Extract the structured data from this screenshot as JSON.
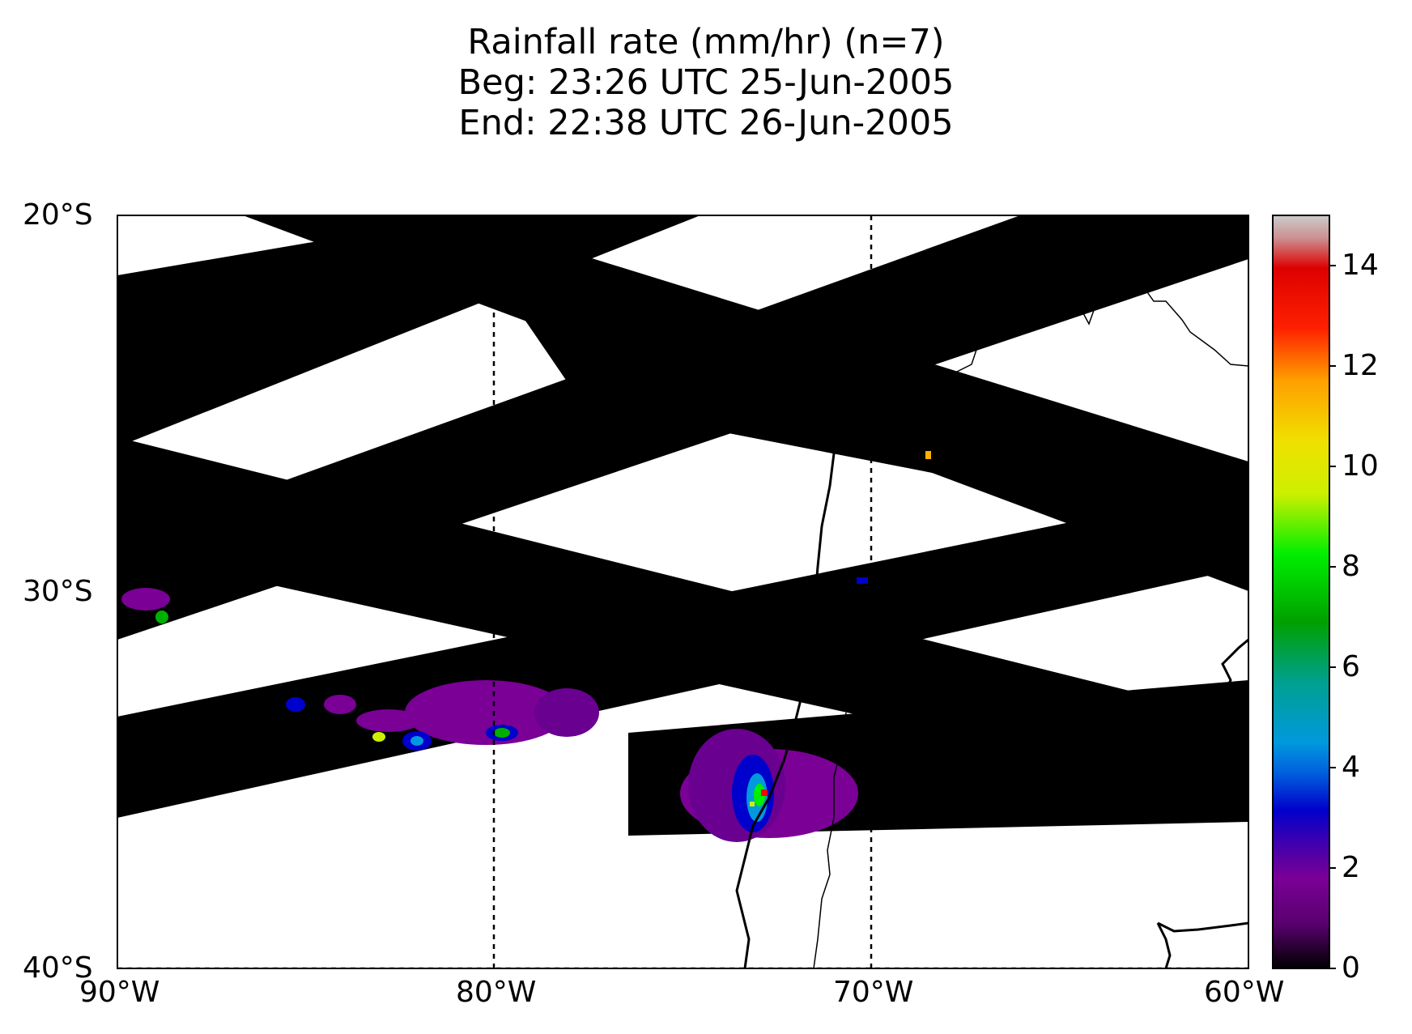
{
  "title": {
    "line1": "Rainfall rate (mm/hr)  (n=7)",
    "line2": "Beg: 23:26 UTC 25-Jun-2005",
    "line3": "End: 22:38 UTC 26-Jun-2005"
  },
  "axes": {
    "lat_ticks": [
      {
        "label": "20°S",
        "value": -20
      },
      {
        "label": "30°S",
        "value": -30
      },
      {
        "label": "40°S",
        "value": -40
      }
    ],
    "lon_ticks": [
      {
        "label": "90°W",
        "value": -90
      },
      {
        "label": "80°W",
        "value": -80
      },
      {
        "label": "70°W",
        "value": -70
      },
      {
        "label": "60°W",
        "value": -60
      }
    ],
    "lon_range": [
      -90,
      -60
    ],
    "lat_range": [
      -40,
      -20
    ]
  },
  "colorbar": {
    "range": [
      0,
      15
    ],
    "ticks": [
      "0",
      "2",
      "4",
      "6",
      "8",
      "10",
      "12",
      "14"
    ],
    "colors": [
      "#000000",
      "#7a0096",
      "#0000cc",
      "#0099dd",
      "#00a090",
      "#00b000",
      "#00ee00",
      "#ccf000",
      "#ffb000",
      "#ff0000",
      "#dd0000",
      "#cccccc"
    ]
  },
  "chart_data": {
    "type": "heatmap",
    "variable": "Rainfall rate (mm/hr)",
    "n": 7,
    "lon_range": [
      -90,
      -60
    ],
    "lat_range": [
      -40,
      -20
    ],
    "color_range": [
      0,
      15
    ]
  }
}
